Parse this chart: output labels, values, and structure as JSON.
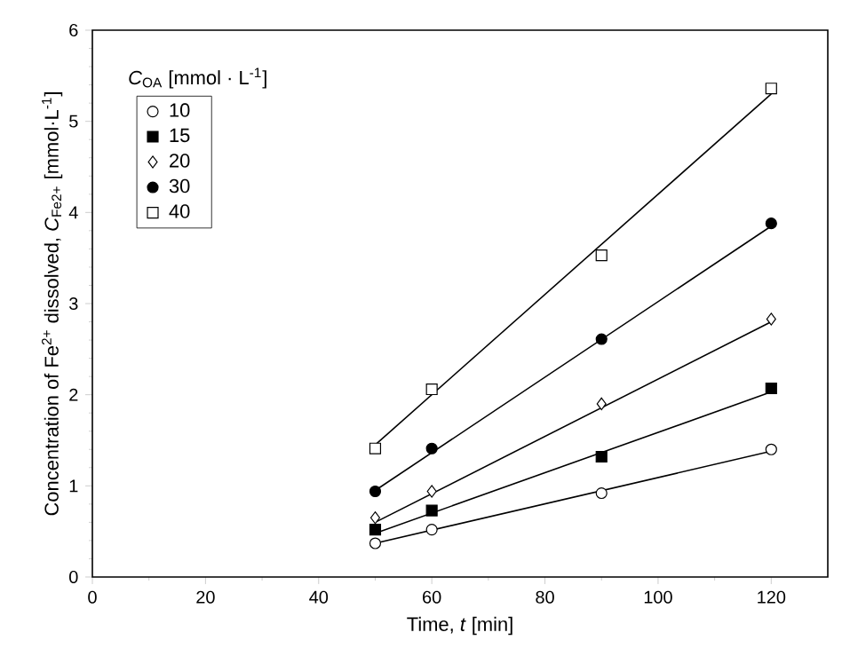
{
  "chart_data": {
    "type": "scatter",
    "xlabel": "Time, *t* [min]",
    "ylabel": "Concentration of Fe$^{2+}$ dissolved, *C*$_{Fe2+}$ [mmol·L$^{-1}$]",
    "legend_title": "*C*$_{OA}$ [mmol · L$^{-1}$]",
    "xlim": [
      0,
      130
    ],
    "xticks": [
      0,
      20,
      40,
      60,
      80,
      100,
      120
    ],
    "ylim": [
      0,
      6
    ],
    "yticks": [
      0,
      1,
      2,
      3,
      4,
      5,
      6
    ],
    "grid": false,
    "legend": "top left",
    "series": [
      {
        "name": "10",
        "marker": "circle",
        "color": "#ffffff",
        "x": [
          50,
          60,
          90,
          120
        ],
        "values": [
          0.37,
          0.52,
          0.92,
          1.4
        ]
      },
      {
        "name": "15",
        "marker": "square",
        "color": "#000000",
        "x": [
          50,
          60,
          90,
          120
        ],
        "values": [
          0.52,
          0.73,
          1.32,
          2.07
        ]
      },
      {
        "name": "20",
        "marker": "diamond",
        "color": "#ffffff",
        "x": [
          50,
          60,
          90,
          120
        ],
        "values": [
          0.65,
          0.94,
          1.9,
          2.83
        ]
      },
      {
        "name": "30",
        "marker": "circle",
        "color": "#000000",
        "x": [
          50,
          60,
          90,
          120
        ],
        "values": [
          0.94,
          1.41,
          2.61,
          3.88
        ]
      },
      {
        "name": "40",
        "marker": "square",
        "color": "#ffffff",
        "x": [
          50,
          60,
          90,
          120
        ],
        "values": [
          1.41,
          2.06,
          3.53,
          5.36
        ]
      },
      {
        "type": "line",
        "marker": "none",
        "color": "#000000",
        "x": [
          50,
          120
        ],
        "values": [
          0.37,
          1.38
        ]
      },
      {
        "type": "line",
        "marker": "none",
        "color": "#000000",
        "x": [
          50,
          120
        ],
        "values": [
          0.48,
          2.03
        ]
      },
      {
        "type": "line",
        "marker": "none",
        "color": "#000000",
        "x": [
          50,
          120
        ],
        "values": [
          0.6,
          2.8
        ]
      },
      {
        "type": "line",
        "marker": "none",
        "color": "#000000",
        "x": [
          50,
          120
        ],
        "values": [
          0.95,
          3.85
        ]
      },
      {
        "type": "line",
        "marker": "none",
        "color": "#000000",
        "x": [
          50,
          120
        ],
        "values": [
          1.45,
          5.3
        ]
      }
    ]
  }
}
